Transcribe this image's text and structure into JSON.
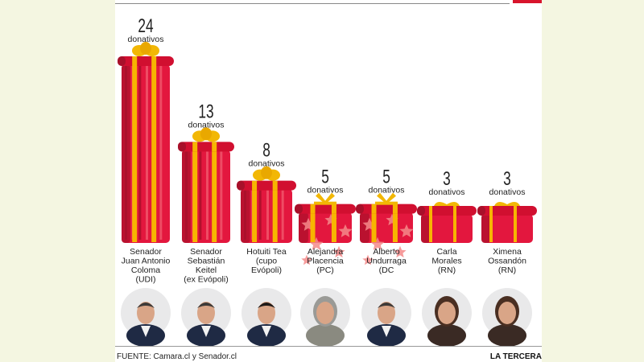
{
  "chart_data": {
    "type": "bar",
    "title": "",
    "xlabel": "",
    "ylabel": "",
    "unit_label": "donativos",
    "ylim": [
      0,
      24
    ],
    "categories": [
      [
        "Senador",
        "Juan Antonio",
        "Coloma",
        "(UDI)"
      ],
      [
        "Senador",
        "Sebastián",
        "Keitel",
        "(ex Evópoli)"
      ],
      [
        "Hotuiti Tea",
        "(cupo",
        "Evópoli)"
      ],
      [
        "Alejandra",
        "Placencia",
        "(PC)"
      ],
      [
        "Alberto",
        "Undurraga",
        "(DC"
      ],
      [
        "Carla",
        "Morales",
        "(RN)"
      ],
      [
        "Ximena",
        "Ossandón",
        "(RN)"
      ]
    ],
    "values": [
      24,
      13,
      8,
      5,
      5,
      3,
      3
    ],
    "patterns": [
      "stripes",
      "stripes",
      "stripes",
      "stars",
      "stars",
      "plain",
      "plain"
    ],
    "colors": {
      "box_red": "#e3173e",
      "lid_red": "#d10f30",
      "dark_red": "#a8102a",
      "stripe_light": "#f0566b",
      "ribbon": "#f7b500",
      "bow": "#f2b705",
      "star": "#f58a8a"
    }
  },
  "footer": {
    "source": "FUENTE: Camara.cl y Senador.cl",
    "brand": "LA TERCERA"
  },
  "portraits": [
    "photo-juan-antonio-coloma",
    "photo-sebastian-keitel",
    "photo-hotuiti-tea",
    "photo-alejandra-placencia",
    "photo-alberto-undurraga",
    "photo-carla-morales",
    "photo-ximena-ossandon"
  ]
}
